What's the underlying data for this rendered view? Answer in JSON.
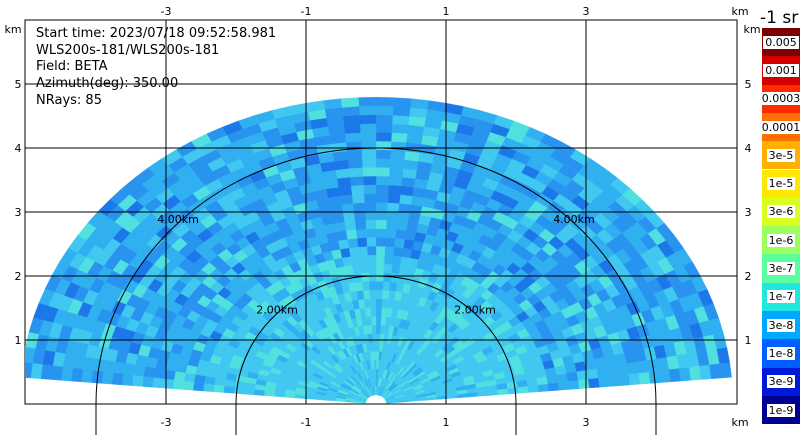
{
  "info": {
    "start_time": "Start time: 2023/07/18 09:52:58.981",
    "device": "WLS200s-181/WLS200s-181",
    "field": "Field: BETA",
    "azimuth": "Azimuth(deg): 350.00",
    "nrays": "NRays: 85"
  },
  "axes": {
    "unit": "km",
    "x_ticks": [
      "-3",
      "-1",
      "1",
      "3"
    ],
    "x_tick_values": [
      -3,
      -1,
      1,
      3
    ],
    "y_ticks": [
      "1",
      "2",
      "3",
      "4",
      "5"
    ],
    "y_tick_values": [
      1,
      2,
      3,
      4,
      5
    ],
    "x_range": [
      -4,
      4
    ],
    "y_range": [
      0,
      6
    ],
    "grid": true
  },
  "range_rings": [
    {
      "label": "2.00km",
      "radius": 2
    },
    {
      "label": "4.00km",
      "radius": 4
    }
  ],
  "colorbar": {
    "unit_label": "-1 sr",
    "labels": [
      "0.005",
      "0.001",
      "0.0003",
      "0.0001",
      "3e-5",
      "1e-5",
      "3e-6",
      "1e-6",
      "3e-7",
      "1e-7",
      "3e-8",
      "1e-8",
      "3e-9",
      "1e-9"
    ],
    "colors": [
      "#7f0000",
      "#d40000",
      "#ff2a00",
      "#ff7000",
      "#ffb000",
      "#ffe800",
      "#d8ff20",
      "#9cff5c",
      "#5cffa0",
      "#20e8dc",
      "#00a8ff",
      "#0060ff",
      "#0018d8",
      "#000090"
    ]
  },
  "field_colors": [
    "#40c8f0",
    "#30b0f0",
    "#2894f0",
    "#50e0e0",
    "#1c78e8"
  ]
}
